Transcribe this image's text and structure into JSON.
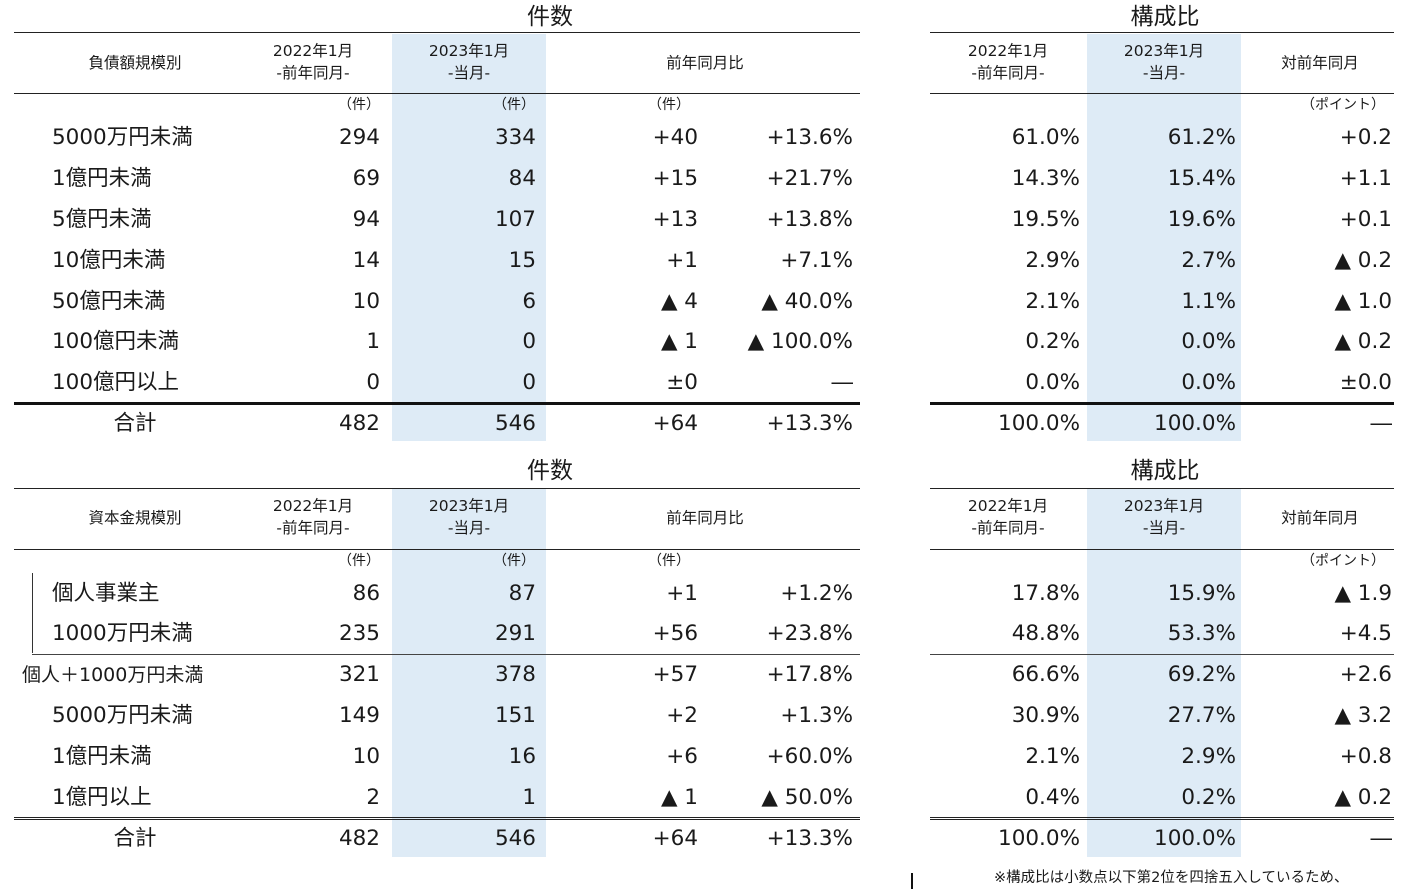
{
  "table1": {
    "title_count": "件数",
    "title_ratio": "構成比",
    "headers": {
      "category": "負債額規模別",
      "prev_l1": "2022年1月",
      "prev_l2": "-前年同月-",
      "curr_l1": "2023年1月",
      "curr_l2": "-当月-",
      "yoy": "前年同月比",
      "ratio_prev_l1": "2022年1月",
      "ratio_prev_l2": "-前年同月-",
      "ratio_curr_l1": "2023年1月",
      "ratio_curr_l2": "-当月-",
      "ratio_yoy": "対前年同月"
    },
    "units": {
      "u1": "（件）",
      "u2": "（件）",
      "u3": "（件）",
      "u4": "（ポイント）"
    },
    "rows": [
      {
        "label": "5000万円未満",
        "prev": "294",
        "curr": "334",
        "diff": "+40",
        "pct": "+13.6%",
        "r_prev": "61.0%",
        "r_curr": "61.2%",
        "r_diff": "+0.2"
      },
      {
        "label": "1億円未満",
        "prev": "69",
        "curr": "84",
        "diff": "+15",
        "pct": "+21.7%",
        "r_prev": "14.3%",
        "r_curr": "15.4%",
        "r_diff": "+1.1"
      },
      {
        "label": "5億円未満",
        "prev": "94",
        "curr": "107",
        "diff": "+13",
        "pct": "+13.8%",
        "r_prev": "19.5%",
        "r_curr": "19.6%",
        "r_diff": "+0.1"
      },
      {
        "label": "10億円未満",
        "prev": "14",
        "curr": "15",
        "diff": "+1",
        "pct": "+7.1%",
        "r_prev": "2.9%",
        "r_curr": "2.7%",
        "r_diff": "▲ 0.2"
      },
      {
        "label": "50億円未満",
        "prev": "10",
        "curr": "6",
        "diff": "▲ 4",
        "pct": "▲ 40.0%",
        "r_prev": "2.1%",
        "r_curr": "1.1%",
        "r_diff": "▲ 1.0"
      },
      {
        "label": "100億円未満",
        "prev": "1",
        "curr": "0",
        "diff": "▲ 1",
        "pct": "▲ 100.0%",
        "r_prev": "0.2%",
        "r_curr": "0.0%",
        "r_diff": "▲ 0.2"
      },
      {
        "label": "100億円以上",
        "prev": "0",
        "curr": "0",
        "diff": "±0",
        "pct": "―",
        "r_prev": "0.0%",
        "r_curr": "0.0%",
        "r_diff": "±0.0"
      }
    ],
    "total": {
      "label": "合計",
      "prev": "482",
      "curr": "546",
      "diff": "+64",
      "pct": "+13.3%",
      "r_prev": "100.0%",
      "r_curr": "100.0%",
      "r_diff": "―"
    }
  },
  "table2": {
    "title_count": "件数",
    "title_ratio": "構成比",
    "headers": {
      "category": "資本金規模別",
      "prev_l1": "2022年1月",
      "prev_l2": "-前年同月-",
      "curr_l1": "2023年1月",
      "curr_l2": "-当月-",
      "yoy": "前年同月比",
      "ratio_prev_l1": "2022年1月",
      "ratio_prev_l2": "-前年同月-",
      "ratio_curr_l1": "2023年1月",
      "ratio_curr_l2": "-当月-",
      "ratio_yoy": "対前年同月"
    },
    "units": {
      "u1": "（件）",
      "u2": "（件）",
      "u3": "（件）",
      "u4": "（ポイント）"
    },
    "rows": [
      {
        "label": "個人事業主",
        "prev": "86",
        "curr": "87",
        "diff": "+1",
        "pct": "+1.2%",
        "r_prev": "17.8%",
        "r_curr": "15.9%",
        "r_diff": "▲ 1.9"
      },
      {
        "label": "1000万円未満",
        "prev": "235",
        "curr": "291",
        "diff": "+56",
        "pct": "+23.8%",
        "r_prev": "48.8%",
        "r_curr": "53.3%",
        "r_diff": "+4.5"
      },
      {
        "label": "個人＋1000万円未満",
        "prev": "321",
        "curr": "378",
        "diff": "+57",
        "pct": "+17.8%",
        "r_prev": "66.6%",
        "r_curr": "69.2%",
        "r_diff": "+2.6"
      },
      {
        "label": "5000万円未満",
        "prev": "149",
        "curr": "151",
        "diff": "+2",
        "pct": "+1.3%",
        "r_prev": "30.9%",
        "r_curr": "27.7%",
        "r_diff": "▲ 3.2"
      },
      {
        "label": "1億円未満",
        "prev": "10",
        "curr": "16",
        "diff": "+6",
        "pct": "+60.0%",
        "r_prev": "2.1%",
        "r_curr": "2.9%",
        "r_diff": "+0.8"
      },
      {
        "label": "1億円以上",
        "prev": "2",
        "curr": "1",
        "diff": "▲ 1",
        "pct": "▲ 50.0%",
        "r_prev": "0.4%",
        "r_curr": "0.2%",
        "r_diff": "▲ 0.2"
      }
    ],
    "total": {
      "label": "合計",
      "prev": "482",
      "curr": "546",
      "diff": "+64",
      "pct": "+13.3%",
      "r_prev": "100.0%",
      "r_curr": "100.0%",
      "r_diff": "―"
    }
  },
  "footnote": "※構成比は小数点以下第2位を四捨五入しているため、"
}
